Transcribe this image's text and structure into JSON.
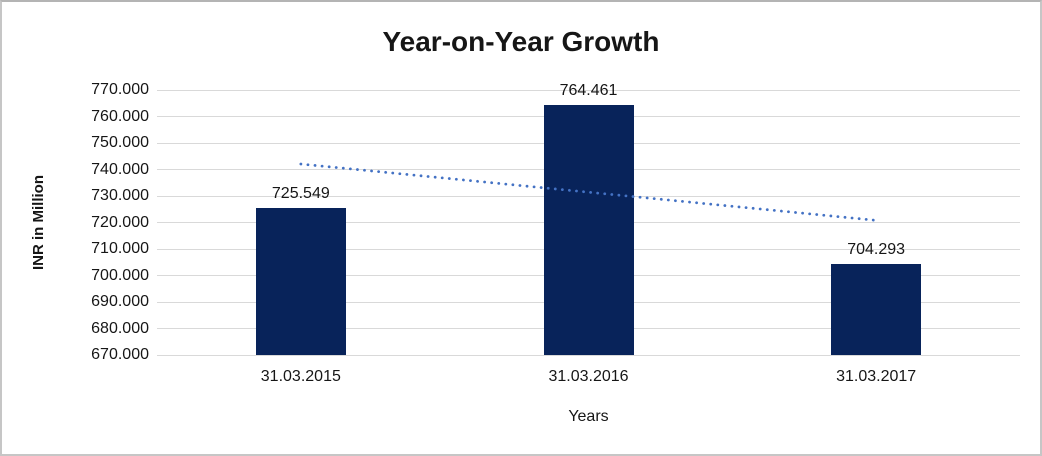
{
  "chart_data": {
    "type": "bar",
    "title": "Year-on-Year Growth",
    "xlabel": "Years",
    "ylabel": "INR in Million",
    "categories": [
      "31.03.2015",
      "31.03.2016",
      "31.03.2017"
    ],
    "values": [
      725.549,
      764.461,
      704.293
    ],
    "data_labels": [
      "725.549",
      "764.461",
      "704.293"
    ],
    "ylim": [
      670,
      770
    ],
    "ytick_step": 10,
    "ytick_labels": [
      "770.000",
      "760.000",
      "750.000",
      "740.000",
      "730.000",
      "720.000",
      "710.000",
      "700.000",
      "690.000",
      "680.000",
      "670.000"
    ],
    "grid": true,
    "legend_position": "none",
    "trendline": {
      "type": "linear",
      "style": "dotted"
    },
    "colors": {
      "bar": "#08235a",
      "trendline": "#4472c4",
      "gridline": "#d9d9d9",
      "axis_line": "#d9d9d9",
      "text": "#161616"
    }
  }
}
